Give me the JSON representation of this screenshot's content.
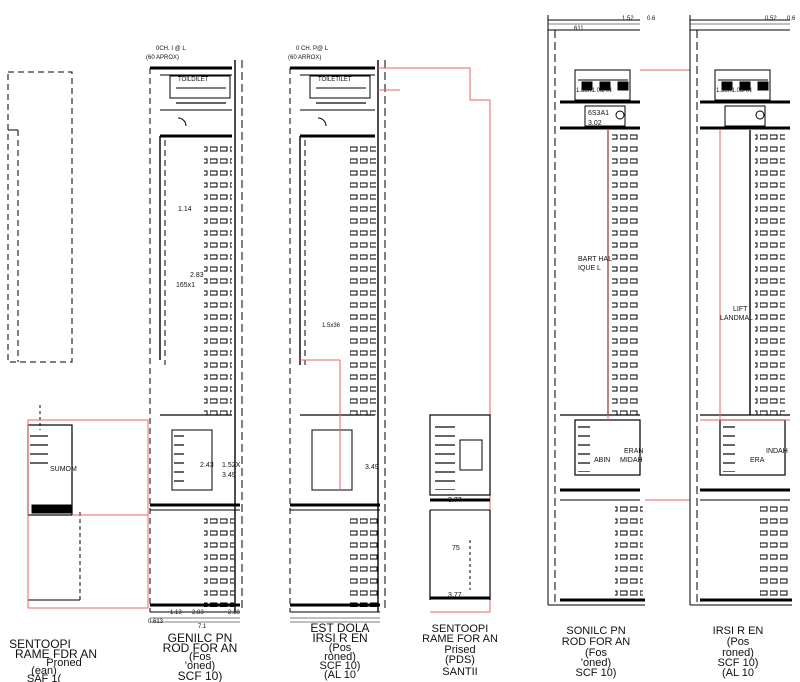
{
  "drawing": {
    "titles": {
      "t1_line1": "SENTOOPI",
      "t1_line2": "RAME FDR AN",
      "t1_line3": "Proned",
      "t1_line4": "(ean)",
      "t1_line5": "SAF 1(",
      "t2_line1": "GENILC PN",
      "t2_line2": "ROD FOR AN",
      "t2_line3": "(Fos",
      "t2_line4": "'oned)",
      "t2_line5": "SCF 10)",
      "t3_line1": "EST DOLA",
      "t3_line2": "IRSI R EN",
      "t3_line3": "(Pos",
      "t3_line4": "roned)",
      "t3_line5": "SCF 10)",
      "t3_line6": "(AL 10",
      "t4_line1": "SENTOOPI",
      "t4_line2": "RAME FOR AN",
      "t4_line3": "Prised",
      "t4_line4": "(PDS)",
      "t4_line5": "SANTII",
      "t5_line1": "SONILC PN",
      "t5_line2": "ROD FOR AN",
      "t5_line3": "(Fos",
      "t5_line4": "'oned)",
      "t5_line5": "SCF 10)",
      "t6_line1": "IRSI R EN",
      "t6_line2": "(Pos",
      "t6_line3": "roned)",
      "t6_line4": "SCF 10)",
      "t6_line5": "(AL 10"
    },
    "labels": {
      "ch1": "0CH. I @ L",
      "ch1b": "(60 APROX)",
      "ch2": "0 CH. P@ L",
      "ch2b": "(60 ARROX)",
      "toilet1": "TOILDILET",
      "toilet2": "TOILETILET",
      "dim_114": "1.14",
      "dim_283": "2.83",
      "dim_165": "165x1",
      "dim_243": "2.43",
      "dim_152": "1.52X",
      "dim_349a": "3.49",
      "dim_349b": "3.49",
      "dim_113": "1.13",
      "dim_283b": "2.83",
      "dim_218": "2.18",
      "dim_0613": "0.613",
      "dim_71": "7.1",
      "dim_1x36": "1.5x36",
      "dim_377a": "3.77",
      "dim_377b": "3.77",
      "dim_75": "75",
      "sumom": "SUMOM",
      "bart_hall": "BART HAL",
      "bart_hall2": "IQUE L",
      "lift_landing": "LIFT",
      "lift_landing2": "LANDMAL",
      "eran": "ERAN",
      "midah": "MIDAH",
      "abin": "ABIN",
      "indah": "INDAH",
      "era": "ERA",
      "s3a1": "6S3A1",
      "d302": "3.02",
      "top_pt1": "1.52",
      "top_pt2": "0.6",
      "top_pt3": "0.52",
      "top_pt4": "0.6",
      "top_611": "611",
      "blk_a": "1.38X1.08AN",
      "blk_b": "1.38X1.08AN"
    }
  }
}
